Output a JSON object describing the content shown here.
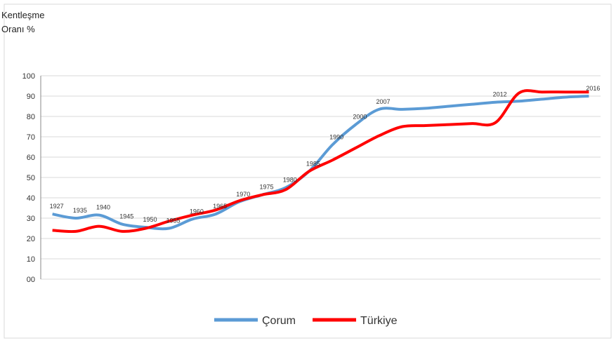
{
  "chart_data": {
    "type": "line",
    "y_label": "Kentleşme Oranı %",
    "categories": [
      "1927",
      "1935",
      "1940",
      "1945",
      "1950",
      "1955",
      "1960",
      "1965",
      "1970",
      "1975",
      "1980",
      "1985",
      "1990",
      "2000",
      "2007",
      null,
      null,
      null,
      null,
      "2012",
      null,
      null,
      null,
      "2016"
    ],
    "series": [
      {
        "name": "Çorum",
        "color": "#5b9bd5",
        "values": [
          32,
          30,
          31.5,
          27,
          25.5,
          25,
          29.5,
          32,
          38,
          41.5,
          45,
          53,
          66,
          76,
          83.5,
          83.5,
          84,
          85,
          86,
          87,
          87.5,
          88.5,
          89.5,
          90
        ]
      },
      {
        "name": "Türkiye",
        "color": "#ff0000",
        "values": [
          24,
          23.5,
          26,
          23.5,
          25,
          28.5,
          31.5,
          34,
          38.5,
          41.5,
          44,
          53,
          58.5,
          64.5,
          70.5,
          75,
          75.5,
          76,
          76.5,
          77,
          91.5,
          92,
          92,
          92
        ]
      }
    ],
    "ylim": [
      0,
      100
    ],
    "yticks": [
      {
        "value": 0,
        "label": "00"
      },
      10,
      20,
      30,
      40,
      50,
      60,
      70,
      80,
      90,
      100
    ],
    "grid": true,
    "legend": "bottom"
  }
}
